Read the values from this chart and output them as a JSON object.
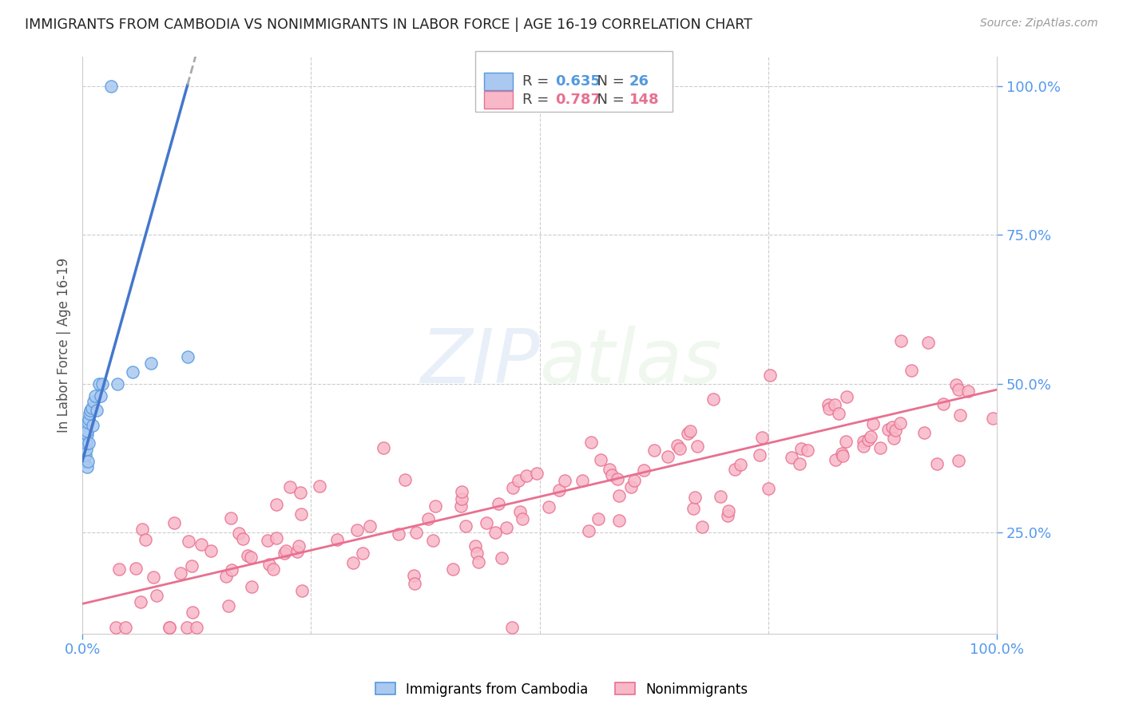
{
  "title": "IMMIGRANTS FROM CAMBODIA VS NONIMMIGRANTS IN LABOR FORCE | AGE 16-19 CORRELATION CHART",
  "source": "Source: ZipAtlas.com",
  "ylabel": "In Labor Force | Age 16-19",
  "xlim": [
    0,
    1
  ],
  "ylim": [
    0.08,
    1.05
  ],
  "ytick_labels_right": [
    "100.0%",
    "75.0%",
    "50.0%",
    "25.0%"
  ],
  "ytick_positions_right": [
    1.0,
    0.75,
    0.5,
    0.25
  ],
  "background_color": "#ffffff",
  "grid_color": "#cccccc",
  "legend_R1": "0.635",
  "legend_N1": "26",
  "legend_R2": "0.787",
  "legend_N2": "148",
  "blue_fill": "#aac8f0",
  "blue_edge": "#5599dd",
  "pink_fill": "#f8b8c8",
  "pink_edge": "#e87090",
  "blue_line": "#4477cc",
  "pink_line": "#e87090",
  "title_color": "#222222",
  "source_color": "#999999",
  "axis_label_color": "#555555",
  "right_tick_color": "#5599ee",
  "bottom_tick_color": "#5599ee",
  "cam_intercept": 0.37,
  "cam_slope": 5.5,
  "non_intercept": 0.13,
  "non_slope": 0.36
}
